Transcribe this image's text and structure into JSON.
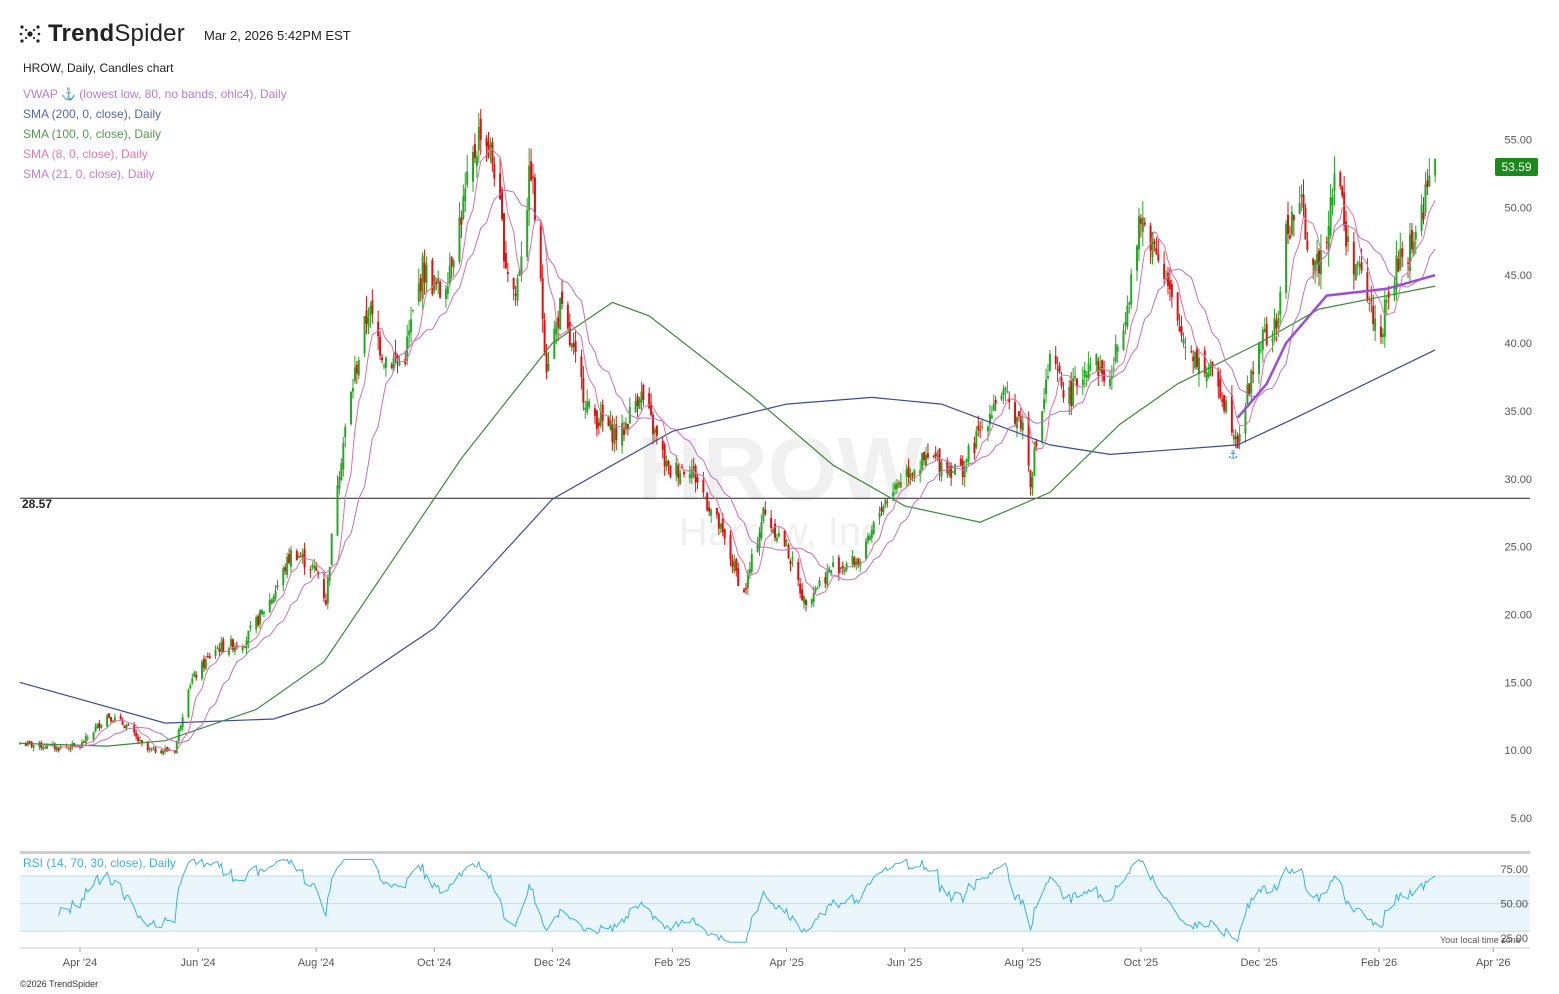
{
  "app": {
    "brand_bold": "Trend",
    "brand_light": "Spider",
    "timestamp": "Mar 2, 2026 5:42PM EST",
    "copyright": "©2026 TrendSpider",
    "local_tz_note": "Your local time zone"
  },
  "chart_header": {
    "title": "HROW, Daily, Candles chart",
    "indicators": [
      {
        "label": "VWAP ⚓ (lowest low, 80, no bands, ohlc4), Daily",
        "color": "#b77ad9"
      },
      {
        "label": "SMA (200, 0, close), Daily",
        "color": "#5566aa"
      },
      {
        "label": "SMA (100, 0, close), Daily",
        "color": "#4c9a4c"
      },
      {
        "label": "SMA (8, 0, close), Daily",
        "color": "#e37aa6"
      },
      {
        "label": "SMA (21, 0, close), Daily",
        "color": "#c77ac9"
      }
    ],
    "rsi_label": "RSI (14, 70, 30, close), Daily"
  },
  "watermark": {
    "ticker": "HROW",
    "company": "Harrow, Inc"
  },
  "last_price": "53.59",
  "horizontal_line": {
    "label": "28.57",
    "value": 28.57
  },
  "colors": {
    "up": "#22aa22",
    "down": "#dd1111",
    "sma200": "#3a4a99",
    "sma100": "#3a8a3a",
    "sma8": "#e070a0",
    "sma21": "#c070c0",
    "vwap": "#9b4fd0",
    "rsi": "#3bb0e0"
  },
  "chart_data": {
    "type": "candlestick",
    "ticker": "HROW",
    "y_ticks": [
      "55.00",
      "50.00",
      "45.00",
      "40.00",
      "35.00",
      "30.00",
      "25.00",
      "20.00",
      "15.00",
      "10.00",
      "5.00"
    ],
    "ylim": [
      2.5,
      58.5
    ],
    "x_ticks": [
      "Apr '24",
      "Jun '24",
      "Aug '24",
      "Oct '24",
      "Dec '24",
      "Feb '25",
      "Apr '25",
      "Jun '25",
      "Aug '25",
      "Oct '25",
      "Dec '25",
      "Feb '26",
      "Apr '26"
    ],
    "close_path": [
      [
        "2024-03-01",
        10.5
      ],
      [
        "2024-03-20",
        10.2
      ],
      [
        "2024-04-01",
        10.3
      ],
      [
        "2024-04-15",
        12.6
      ],
      [
        "2024-04-25",
        11.8
      ],
      [
        "2024-05-05",
        10.0
      ],
      [
        "2024-05-20",
        10.0
      ],
      [
        "2024-05-27",
        14.8
      ],
      [
        "2024-06-10",
        17.5
      ],
      [
        "2024-06-25",
        18.0
      ],
      [
        "2024-07-10",
        21.5
      ],
      [
        "2024-07-20",
        24.8
      ],
      [
        "2024-08-02",
        23.0
      ],
      [
        "2024-08-06",
        21.0
      ],
      [
        "2024-08-12",
        30.0
      ],
      [
        "2024-08-20",
        37.0
      ],
      [
        "2024-08-28",
        42.5
      ],
      [
        "2024-09-05",
        39.0
      ],
      [
        "2024-09-15",
        38.5
      ],
      [
        "2024-09-25",
        45.5
      ],
      [
        "2024-10-05",
        43.5
      ],
      [
        "2024-10-15",
        49.5
      ],
      [
        "2024-10-25",
        56.0
      ],
      [
        "2024-11-01",
        53.0
      ],
      [
        "2024-11-07",
        46.0
      ],
      [
        "2024-11-12",
        43.5
      ],
      [
        "2024-11-20",
        53.0
      ],
      [
        "2024-11-28",
        38.5
      ],
      [
        "2024-12-05",
        42.5
      ],
      [
        "2024-12-20",
        35.0
      ],
      [
        "2025-01-05",
        33.0
      ],
      [
        "2025-01-15",
        36.5
      ],
      [
        "2025-01-30",
        30.5
      ],
      [
        "2025-02-10",
        31.0
      ],
      [
        "2025-02-25",
        26.5
      ],
      [
        "2025-03-10",
        21.5
      ],
      [
        "2025-03-20",
        27.5
      ],
      [
        "2025-04-01",
        25.0
      ],
      [
        "2025-04-10",
        21.0
      ],
      [
        "2025-04-25",
        23.5
      ],
      [
        "2025-05-10",
        24.0
      ],
      [
        "2025-05-20",
        28.0
      ],
      [
        "2025-06-01",
        30.5
      ],
      [
        "2025-06-15",
        31.5
      ],
      [
        "2025-06-30",
        30.5
      ],
      [
        "2025-07-10",
        33.5
      ],
      [
        "2025-07-20",
        36.5
      ],
      [
        "2025-08-01",
        34.0
      ],
      [
        "2025-08-05",
        30.0
      ],
      [
        "2025-08-15",
        38.5
      ],
      [
        "2025-08-25",
        36.0
      ],
      [
        "2025-09-05",
        39.0
      ],
      [
        "2025-09-15",
        37.0
      ],
      [
        "2025-09-25",
        44.0
      ],
      [
        "2025-10-01",
        49.0
      ],
      [
        "2025-10-10",
        47.0
      ],
      [
        "2025-10-20",
        41.0
      ],
      [
        "2025-11-01",
        38.5
      ],
      [
        "2025-11-10",
        37.0
      ],
      [
        "2025-11-20",
        33.0
      ],
      [
        "2025-12-01",
        40.0
      ],
      [
        "2025-12-10",
        41.0
      ],
      [
        "2025-12-15",
        48.0
      ],
      [
        "2025-12-22",
        50.5
      ],
      [
        "2025-12-30",
        45.0
      ],
      [
        "2026-01-05",
        48.5
      ],
      [
        "2026-01-10",
        54.0
      ],
      [
        "2026-01-15",
        47.5
      ],
      [
        "2026-01-25",
        44.0
      ],
      [
        "2026-02-01",
        40.5
      ],
      [
        "2026-02-10",
        45.5
      ],
      [
        "2026-02-20",
        48.0
      ],
      [
        "2026-03-02",
        53.59
      ]
    ],
    "sma200_path": [
      [
        "2024-03-01",
        15.0
      ],
      [
        "2024-05-15",
        12.0
      ],
      [
        "2024-07-10",
        12.3
      ],
      [
        "2024-08-05",
        13.5
      ],
      [
        "2024-10-01",
        19.0
      ],
      [
        "2024-12-01",
        28.5
      ],
      [
        "2025-02-01",
        33.5
      ],
      [
        "2025-04-01",
        35.5
      ],
      [
        "2025-05-15",
        36.0
      ],
      [
        "2025-06-20",
        35.5
      ],
      [
        "2025-08-15",
        32.5
      ],
      [
        "2025-09-15",
        31.8
      ],
      [
        "2025-11-20",
        32.5
      ],
      [
        "2025-12-20",
        34.5
      ],
      [
        "2026-03-02",
        39.5
      ]
    ],
    "sma100_path": [
      [
        "2024-03-01",
        10.5
      ],
      [
        "2024-04-15",
        10.3
      ],
      [
        "2024-05-15",
        10.7
      ],
      [
        "2024-07-01",
        13.0
      ],
      [
        "2024-08-05",
        16.5
      ],
      [
        "2024-10-15",
        31.5
      ],
      [
        "2024-12-01",
        40.0
      ],
      [
        "2025-01-01",
        43.0
      ],
      [
        "2025-01-20",
        42.0
      ],
      [
        "2025-03-15",
        36.0
      ],
      [
        "2025-04-25",
        31.0
      ],
      [
        "2025-06-01",
        28.0
      ],
      [
        "2025-07-10",
        26.8
      ],
      [
        "2025-08-15",
        29.0
      ],
      [
        "2025-09-20",
        34.0
      ],
      [
        "2025-10-20",
        37.0
      ],
      [
        "2025-12-01",
        40.0
      ],
      [
        "2026-01-01",
        42.5
      ],
      [
        "2026-03-02",
        44.2
      ]
    ],
    "vwap_path": [
      [
        "2025-11-20",
        34.5
      ],
      [
        "2025-12-05",
        37.0
      ],
      [
        "2025-12-15",
        40.0
      ],
      [
        "2026-01-05",
        43.5
      ],
      [
        "2026-02-05",
        44.0
      ],
      [
        "2026-03-02",
        45.0
      ]
    ],
    "rsi": {
      "levels": [
        70,
        50,
        30
      ],
      "tick_labels": [
        "75.00",
        "50.00",
        "25.00"
      ],
      "ylim": [
        20,
        83
      ]
    }
  }
}
